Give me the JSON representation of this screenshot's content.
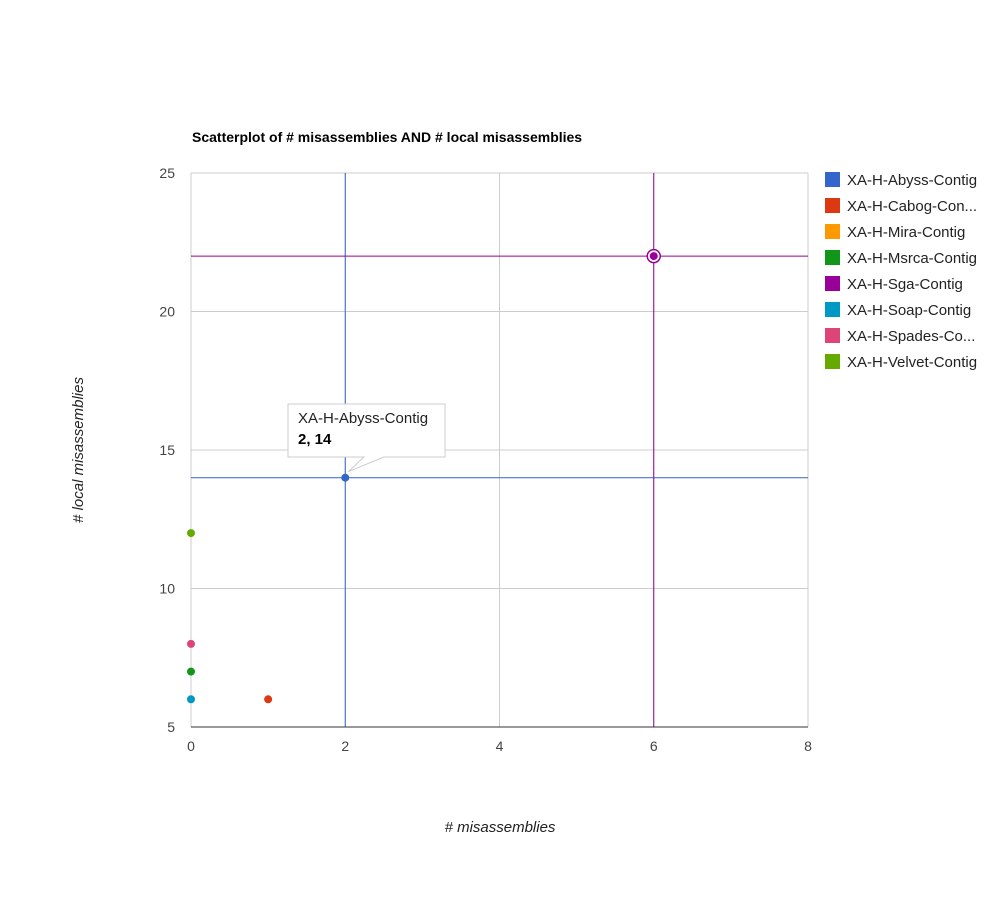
{
  "chart_data": {
    "type": "scatter",
    "title": "Scatterplot of # misassemblies AND # local misassemblies",
    "xlabel": "# misassemblies",
    "ylabel": "# local misassemblies",
    "xlim": [
      0,
      8
    ],
    "ylim": [
      5,
      25
    ],
    "xticks": [
      0,
      2,
      4,
      6,
      8
    ],
    "yticks": [
      5,
      10,
      15,
      20,
      25
    ],
    "grid": true,
    "legend_position": "right",
    "series": [
      {
        "name": "XA-H-Abyss-Contig",
        "legend_label": "XA-H-Abyss-Contig",
        "color": "#3366cc",
        "points": [
          [
            2,
            14
          ]
        ]
      },
      {
        "name": "XA-H-Cabog-Contig",
        "legend_label": "XA-H-Cabog-Con...",
        "color": "#dc3912",
        "points": [
          [
            1,
            6
          ]
        ]
      },
      {
        "name": "XA-H-Mira-Contig",
        "legend_label": "XA-H-Mira-Contig",
        "color": "#ff9900",
        "points": []
      },
      {
        "name": "XA-H-Msrca-Contig",
        "legend_label": "XA-H-Msrca-Contig",
        "color": "#109618",
        "points": [
          [
            0,
            7
          ]
        ]
      },
      {
        "name": "XA-H-Sga-Contig",
        "legend_label": "XA-H-Sga-Contig",
        "color": "#990099",
        "points": [
          [
            6,
            22
          ]
        ]
      },
      {
        "name": "XA-H-Soap-Contig",
        "legend_label": "XA-H-Soap-Contig",
        "color": "#0099c6",
        "points": [
          [
            0,
            6
          ]
        ]
      },
      {
        "name": "XA-H-Spades-Contig",
        "legend_label": "XA-H-Spades-Co...",
        "color": "#dd4477",
        "points": [
          [
            0,
            8
          ]
        ]
      },
      {
        "name": "XA-H-Velvet-Contig",
        "legend_label": "XA-H-Velvet-Contig",
        "color": "#66aa00",
        "points": [
          [
            0,
            12
          ]
        ]
      }
    ],
    "crosshairs": [
      {
        "series": "XA-H-Abyss-Contig",
        "x": 2,
        "y": 14,
        "color": "#3366cc"
      },
      {
        "series": "XA-H-Sga-Contig",
        "x": 6,
        "y": 22,
        "color": "#990099",
        "selected": true
      }
    ],
    "tooltip": {
      "series_label": "XA-H-Abyss-Contig",
      "value_label": "2, 14",
      "x": 2,
      "y": 14
    }
  }
}
